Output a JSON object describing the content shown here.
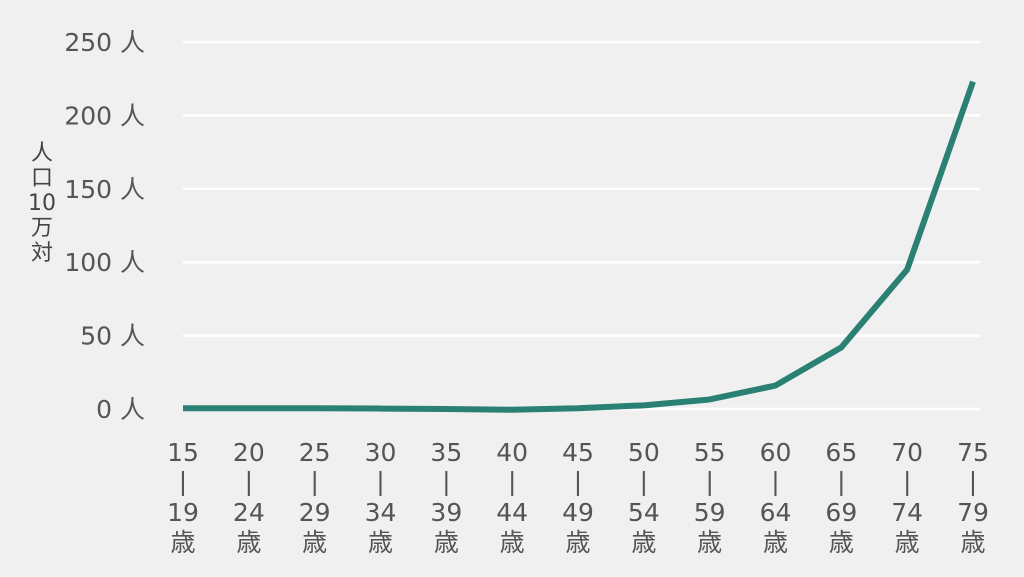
{
  "chart_data": {
    "type": "line",
    "ylabel": [
      "人",
      "口",
      "10",
      "万",
      "対"
    ],
    "y_ticks": [
      "0 人",
      "50 人",
      "100 人",
      "150 人",
      "200 人",
      "250 人"
    ],
    "y_tick_values": [
      0,
      50,
      100,
      150,
      200,
      250
    ],
    "ylim": [
      0,
      250
    ],
    "grid": true,
    "categories": [
      [
        "15",
        "|",
        "19",
        "歳"
      ],
      [
        "20",
        "|",
        "24",
        "歳"
      ],
      [
        "25",
        "|",
        "29",
        "歳"
      ],
      [
        "30",
        "|",
        "34",
        "歳"
      ],
      [
        "35",
        "|",
        "39",
        "歳"
      ],
      [
        "40",
        "|",
        "44",
        "歳"
      ],
      [
        "45",
        "|",
        "49",
        "歳"
      ],
      [
        "50",
        "|",
        "54",
        "歳"
      ],
      [
        "55",
        "|",
        "59",
        "歳"
      ],
      [
        "60",
        "|",
        "64",
        "歳"
      ],
      [
        "65",
        "|",
        "69",
        "歳"
      ],
      [
        "70",
        "|",
        "74",
        "歳"
      ],
      [
        "75",
        "|",
        "79",
        "歳"
      ]
    ],
    "series": [
      {
        "values": [
          0.5,
          0.5,
          0.5,
          0.3,
          0,
          -0.5,
          0.5,
          2.5,
          6.5,
          16,
          42,
          95,
          223
        ],
        "color": "#2a8072"
      }
    ]
  }
}
